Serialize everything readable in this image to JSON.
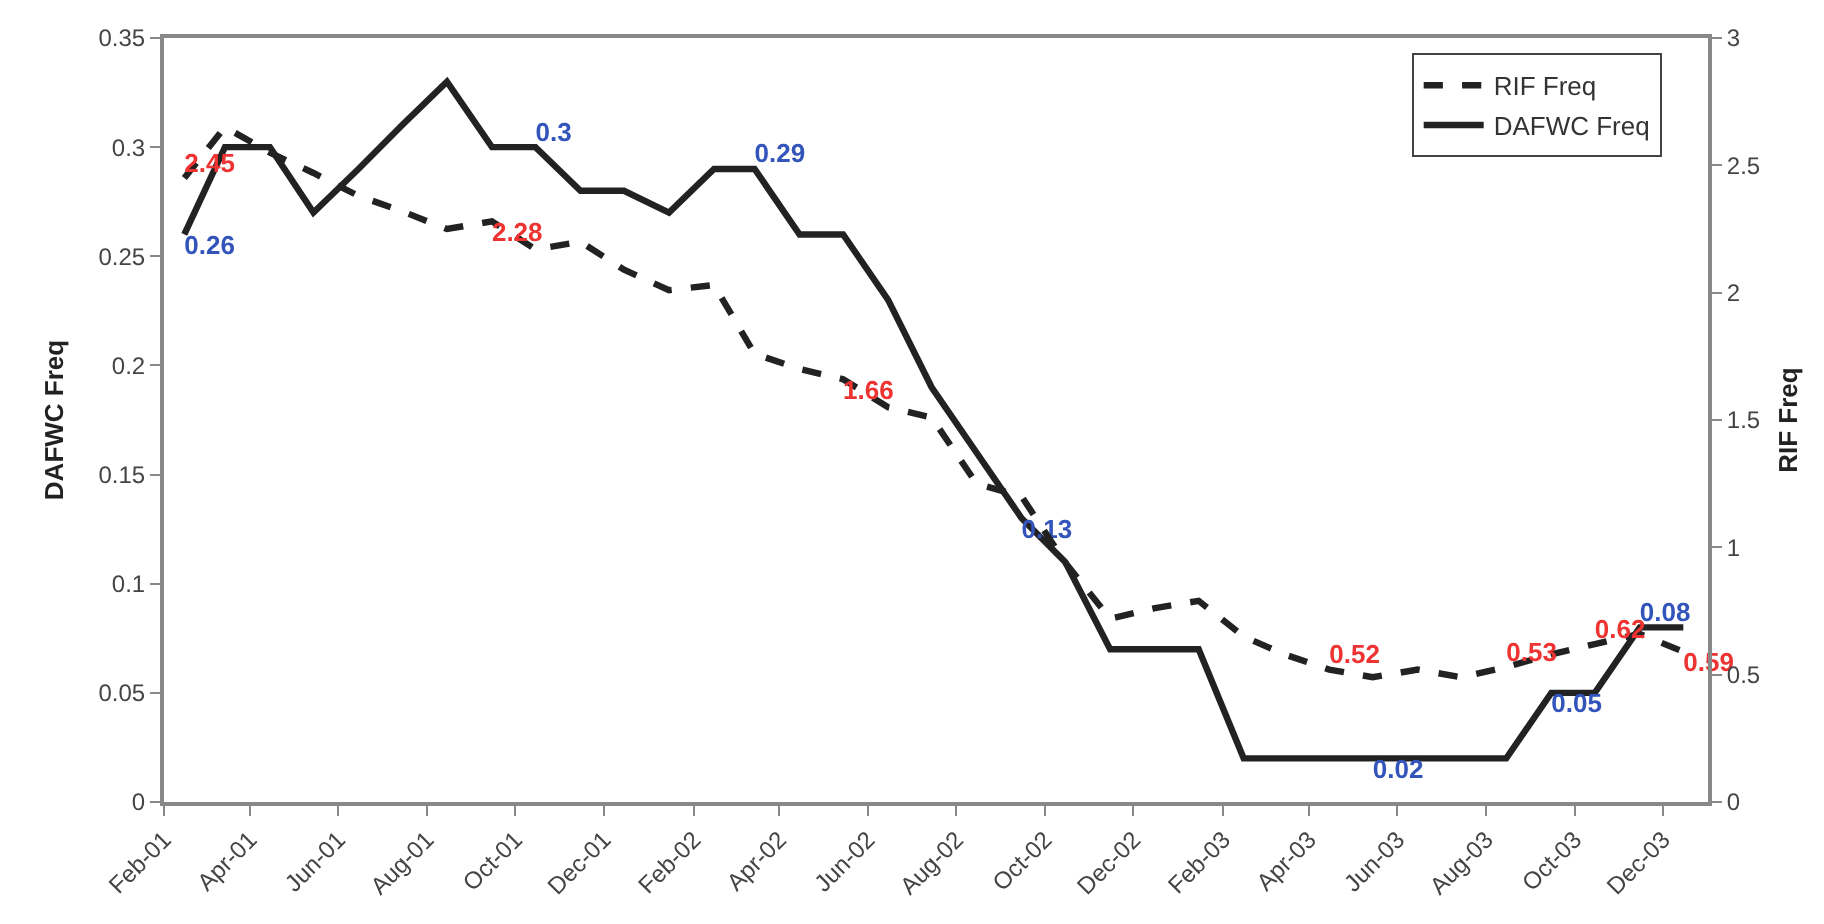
{
  "chart_data": {
    "type": "line",
    "ylabel": "DAFWC Freq",
    "y2label": "RIF Freq",
    "x": [
      "2001-02-15",
      "2001-03-15",
      "2001-04-15",
      "2001-05-15",
      "2001-06-15",
      "2001-07-15",
      "2001-08-15",
      "2001-09-15",
      "2001-10-15",
      "2001-11-15",
      "2001-12-15",
      "2002-01-15",
      "2002-02-15",
      "2002-03-15",
      "2002-04-15",
      "2002-05-15",
      "2002-06-15",
      "2002-07-15",
      "2002-08-15",
      "2002-09-15",
      "2002-10-15",
      "2002-11-15",
      "2002-12-15",
      "2003-01-15",
      "2003-02-15",
      "2003-03-15",
      "2003-04-15",
      "2003-05-15",
      "2003-06-15",
      "2003-07-15",
      "2003-08-15",
      "2003-09-15",
      "2003-10-15",
      "2003-11-15",
      "2003-12-15"
    ],
    "series": [
      {
        "name": "RIF Freq",
        "color": "#222222",
        "axis": "y2",
        "line_style": "dashed",
        "values": [
          2.45,
          2.65,
          2.55,
          2.47,
          2.38,
          2.32,
          2.25,
          2.28,
          2.17,
          2.2,
          2.09,
          2.01,
          2.03,
          1.76,
          1.7,
          1.66,
          1.55,
          1.51,
          1.25,
          1.2,
          0.94,
          0.72,
          0.76,
          0.79,
          0.65,
          0.58,
          0.52,
          0.49,
          0.52,
          0.49,
          0.53,
          0.58,
          0.62,
          0.66,
          0.59
        ],
        "value_labels": [
          "2.45",
          null,
          null,
          null,
          null,
          null,
          null,
          "2.28",
          null,
          null,
          null,
          null,
          null,
          null,
          null,
          "1.66",
          null,
          null,
          null,
          null,
          null,
          null,
          null,
          null,
          null,
          null,
          "0.52",
          null,
          null,
          null,
          "0.53",
          null,
          "0.62",
          null,
          "0.59"
        ]
      },
      {
        "name": "DAFWC Freq",
        "color": "#222222",
        "line_style": "solid",
        "values": [
          0.26,
          0.3,
          0.3,
          0.27,
          0.29,
          0.31,
          0.33,
          0.3,
          0.3,
          0.28,
          0.28,
          0.27,
          0.29,
          0.29,
          0.26,
          0.26,
          0.23,
          0.19,
          0.16,
          0.13,
          0.11,
          0.07,
          0.07,
          0.07,
          0.02,
          0.02,
          0.02,
          0.02,
          0.02,
          0.02,
          0.02,
          0.05,
          0.05,
          0.08,
          0.08
        ],
        "value_labels": [
          "0.26",
          null,
          null,
          null,
          null,
          null,
          null,
          null,
          "0.3",
          null,
          null,
          null,
          null,
          "0.29",
          null,
          null,
          null,
          null,
          null,
          "0.13",
          null,
          null,
          null,
          null,
          null,
          null,
          null,
          "0.02",
          null,
          null,
          null,
          "0.05",
          null,
          "0.08",
          null
        ]
      }
    ],
    "xlim": [
      "2001-02-01",
      "2004-01-01"
    ],
    "xticks": [
      {
        "value": "2001-02-01",
        "label": "Feb-01"
      },
      {
        "value": "2001-04-01",
        "label": "Apr-01"
      },
      {
        "value": "2001-06-01",
        "label": "Jun-01"
      },
      {
        "value": "2001-08-01",
        "label": "Aug-01"
      },
      {
        "value": "2001-10-01",
        "label": "Oct-01"
      },
      {
        "value": "2001-12-01",
        "label": "Dec-01"
      },
      {
        "value": "2002-02-01",
        "label": "Feb-02"
      },
      {
        "value": "2002-04-01",
        "label": "Apr-02"
      },
      {
        "value": "2002-06-01",
        "label": "Jun-02"
      },
      {
        "value": "2002-08-01",
        "label": "Aug-02"
      },
      {
        "value": "2002-10-01",
        "label": "Oct-02"
      },
      {
        "value": "2002-12-01",
        "label": "Dec-02"
      },
      {
        "value": "2003-02-01",
        "label": "Feb-03"
      },
      {
        "value": "2003-04-01",
        "label": "Apr-03"
      },
      {
        "value": "2003-06-01",
        "label": "Jun-03"
      },
      {
        "value": "2003-08-01",
        "label": "Aug-03"
      },
      {
        "value": "2003-10-01",
        "label": "Oct-03"
      },
      {
        "value": "2003-12-01",
        "label": "Dec-03"
      }
    ],
    "ylim": [
      0,
      0.35
    ],
    "yticks": [
      0,
      0.05,
      0.1,
      0.15,
      0.2,
      0.25,
      0.3,
      0.35
    ],
    "y2lim": [
      0,
      3
    ],
    "y2ticks": [
      0,
      0.5,
      1,
      1.5,
      2,
      2.5,
      3
    ],
    "grid": false,
    "legend": "top right",
    "marker": "none"
  }
}
